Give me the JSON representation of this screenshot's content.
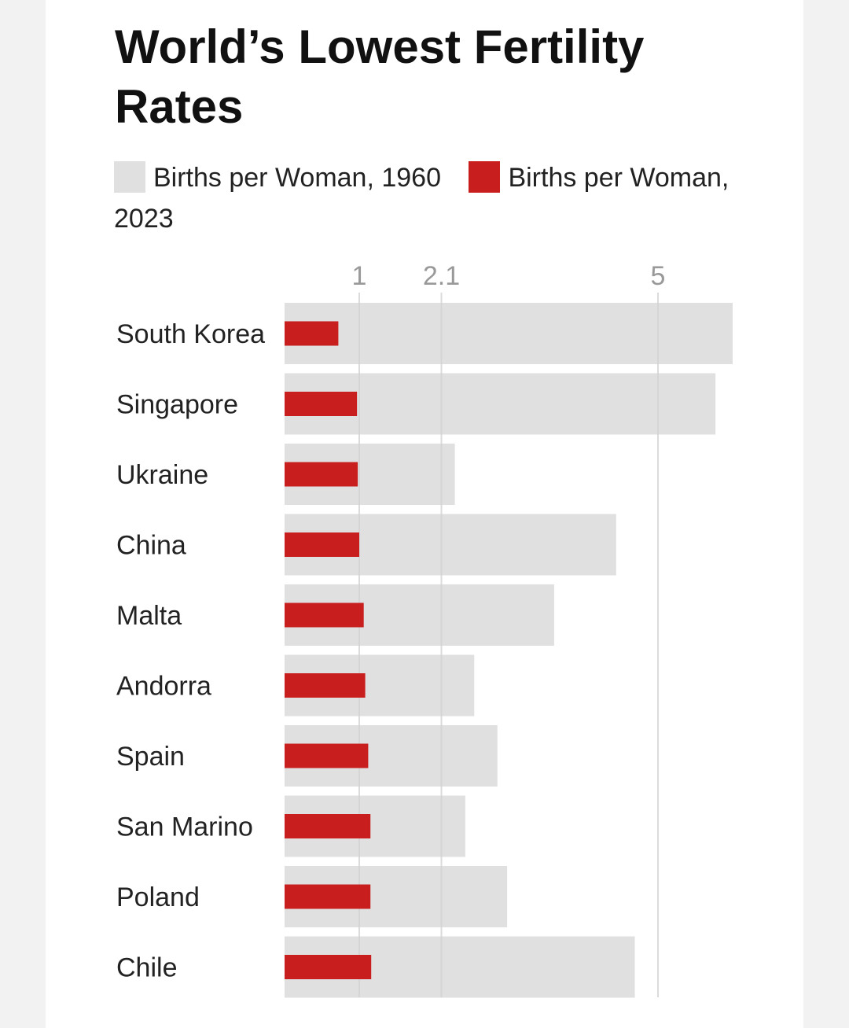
{
  "chart_data": {
    "type": "bar",
    "title": "World’s Lowest Fertility Rates",
    "legend": [
      {
        "name": "Births per Woman, 1960",
        "color": "#e0e0e0"
      },
      {
        "name": "Births per Woman, 2023",
        "color": "#c81e1e"
      }
    ],
    "x_ticks": [
      1,
      2.1,
      5
    ],
    "xlim": [
      0,
      6.2
    ],
    "categories": [
      "South Korea",
      "Singapore",
      "Ukraine",
      "China",
      "Malta",
      "Andorra",
      "Spain",
      "San Marino",
      "Poland",
      "Chile"
    ],
    "series": [
      {
        "name": "Births per Woman, 1960",
        "values": [
          6.0,
          5.77,
          2.28,
          4.44,
          3.61,
          2.54,
          2.85,
          2.42,
          2.98,
          4.69
        ]
      },
      {
        "name": "Births per Woman, 2023",
        "values": [
          0.72,
          0.97,
          0.98,
          1.0,
          1.06,
          1.08,
          1.12,
          1.15,
          1.15,
          1.16
        ]
      }
    ]
  }
}
